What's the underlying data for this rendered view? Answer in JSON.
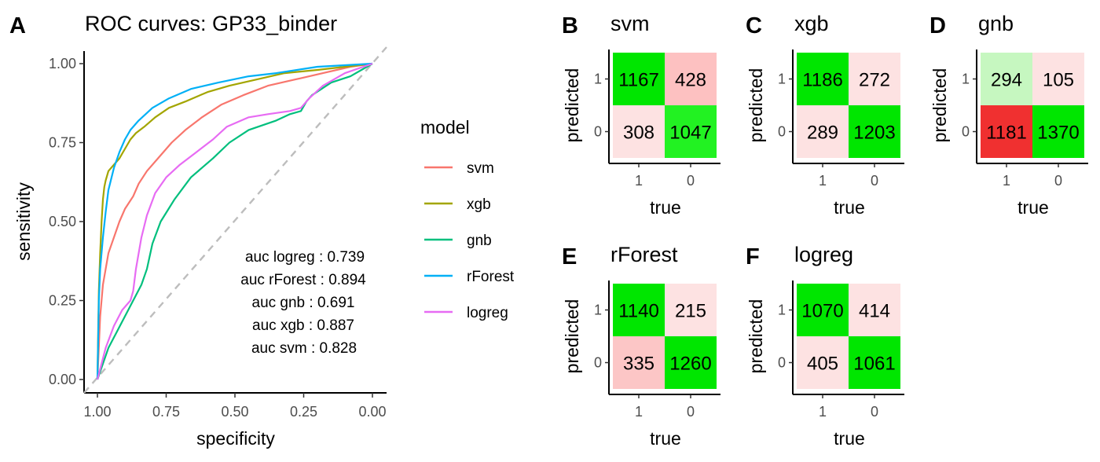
{
  "figure": {
    "panels": [
      {
        "letter": "A",
        "title": "ROC curves: GP33_binder"
      },
      {
        "letter": "B",
        "title": "svm"
      },
      {
        "letter": "C",
        "title": "xgb"
      },
      {
        "letter": "D",
        "title": "gnb"
      },
      {
        "letter": "E",
        "title": "rForest"
      },
      {
        "letter": "F",
        "title": "logreg"
      }
    ]
  },
  "chart_data": [
    {
      "type": "line",
      "title": "ROC curves: GP33_binder",
      "xlabel": "specificity",
      "ylabel": "sensitivity",
      "xlim": [
        1.0,
        0.0
      ],
      "ylim": [
        0.0,
        1.0
      ],
      "x_reversed": true,
      "xticks": [
        "1.00",
        "0.75",
        "0.50",
        "0.25",
        "0.00"
      ],
      "yticks": [
        "0.00",
        "0.25",
        "0.50",
        "0.75",
        "1.00"
      ],
      "grid": false,
      "legend": {
        "title": "model",
        "position": "right"
      },
      "reference_line": {
        "style": "dashed",
        "color": "#bdbdbd",
        "from": [
          1,
          0
        ],
        "to": [
          0,
          1
        ]
      },
      "series": [
        {
          "name": "svm",
          "color": "#F8766D",
          "points": [
            [
              1.0,
              0.0
            ],
            [
              0.99,
              0.2
            ],
            [
              0.98,
              0.3
            ],
            [
              0.96,
              0.4
            ],
            [
              0.94,
              0.45
            ],
            [
              0.92,
              0.5
            ],
            [
              0.9,
              0.54
            ],
            [
              0.87,
              0.58
            ],
            [
              0.85,
              0.62
            ],
            [
              0.82,
              0.66
            ],
            [
              0.78,
              0.7
            ],
            [
              0.73,
              0.75
            ],
            [
              0.68,
              0.79
            ],
            [
              0.62,
              0.83
            ],
            [
              0.55,
              0.87
            ],
            [
              0.47,
              0.9
            ],
            [
              0.38,
              0.93
            ],
            [
              0.28,
              0.95
            ],
            [
              0.18,
              0.97
            ],
            [
              0.08,
              0.99
            ],
            [
              0.0,
              1.0
            ]
          ]
        },
        {
          "name": "xgb",
          "color": "#A3A500",
          "points": [
            [
              1.0,
              0.0
            ],
            [
              0.995,
              0.28
            ],
            [
              0.99,
              0.4
            ],
            [
              0.985,
              0.5
            ],
            [
              0.98,
              0.57
            ],
            [
              0.975,
              0.61
            ],
            [
              0.97,
              0.63
            ],
            [
              0.96,
              0.66
            ],
            [
              0.94,
              0.68
            ],
            [
              0.92,
              0.7
            ],
            [
              0.9,
              0.73
            ],
            [
              0.88,
              0.76
            ],
            [
              0.86,
              0.78
            ],
            [
              0.83,
              0.8
            ],
            [
              0.79,
              0.83
            ],
            [
              0.74,
              0.86
            ],
            [
              0.68,
              0.88
            ],
            [
              0.6,
              0.91
            ],
            [
              0.52,
              0.93
            ],
            [
              0.42,
              0.95
            ],
            [
              0.32,
              0.97
            ],
            [
              0.2,
              0.98
            ],
            [
              0.1,
              0.99
            ],
            [
              0.0,
              1.0
            ]
          ]
        },
        {
          "name": "gnb",
          "color": "#00BF7D",
          "points": [
            [
              1.0,
              0.0
            ],
            [
              0.98,
              0.05
            ],
            [
              0.96,
              0.1
            ],
            [
              0.93,
              0.15
            ],
            [
              0.9,
              0.2
            ],
            [
              0.87,
              0.25
            ],
            [
              0.84,
              0.3
            ],
            [
              0.82,
              0.35
            ],
            [
              0.8,
              0.43
            ],
            [
              0.77,
              0.5
            ],
            [
              0.72,
              0.57
            ],
            [
              0.66,
              0.64
            ],
            [
              0.58,
              0.7
            ],
            [
              0.52,
              0.75
            ],
            [
              0.45,
              0.79
            ],
            [
              0.35,
              0.82
            ],
            [
              0.3,
              0.84
            ],
            [
              0.26,
              0.85
            ],
            [
              0.24,
              0.88
            ],
            [
              0.22,
              0.9
            ],
            [
              0.15,
              0.94
            ],
            [
              0.08,
              0.96
            ],
            [
              0.0,
              1.0
            ]
          ]
        },
        {
          "name": "rForest",
          "color": "#00B0F6",
          "points": [
            [
              1.0,
              0.0
            ],
            [
              0.995,
              0.25
            ],
            [
              0.99,
              0.35
            ],
            [
              0.98,
              0.45
            ],
            [
              0.97,
              0.53
            ],
            [
              0.96,
              0.6
            ],
            [
              0.94,
              0.67
            ],
            [
              0.92,
              0.72
            ],
            [
              0.9,
              0.76
            ],
            [
              0.88,
              0.79
            ],
            [
              0.85,
              0.82
            ],
            [
              0.8,
              0.86
            ],
            [
              0.74,
              0.89
            ],
            [
              0.66,
              0.92
            ],
            [
              0.56,
              0.94
            ],
            [
              0.45,
              0.96
            ],
            [
              0.35,
              0.97
            ],
            [
              0.2,
              0.99
            ],
            [
              0.1,
              0.995
            ],
            [
              0.0,
              1.0
            ]
          ]
        },
        {
          "name": "logreg",
          "color": "#E76BF3",
          "points": [
            [
              1.0,
              0.0
            ],
            [
              0.97,
              0.1
            ],
            [
              0.94,
              0.17
            ],
            [
              0.91,
              0.22
            ],
            [
              0.88,
              0.25
            ],
            [
              0.87,
              0.28
            ],
            [
              0.86,
              0.35
            ],
            [
              0.84,
              0.45
            ],
            [
              0.82,
              0.52
            ],
            [
              0.79,
              0.59
            ],
            [
              0.75,
              0.64
            ],
            [
              0.7,
              0.68
            ],
            [
              0.64,
              0.72
            ],
            [
              0.58,
              0.76
            ],
            [
              0.53,
              0.8
            ],
            [
              0.45,
              0.83
            ],
            [
              0.38,
              0.84
            ],
            [
              0.3,
              0.85
            ],
            [
              0.26,
              0.86
            ],
            [
              0.23,
              0.89
            ],
            [
              0.18,
              0.93
            ],
            [
              0.1,
              0.97
            ],
            [
              0.0,
              1.0
            ]
          ]
        }
      ],
      "annotations": [
        "auc logreg : 0.739",
        "auc rForest : 0.894",
        "auc gnb : 0.691",
        "auc xgb : 0.887",
        "auc svm : 0.828"
      ]
    },
    {
      "type": "heatmap",
      "title": "svm",
      "xlabel": "true",
      "ylabel": "predicted",
      "xticks": [
        "1",
        "0"
      ],
      "yticks": [
        "1",
        "0"
      ],
      "cells": [
        [
          1167,
          428
        ],
        [
          308,
          1047
        ]
      ],
      "colors": [
        [
          "#00e600",
          "#fdc1c1"
        ],
        [
          "#fde2e2",
          "#22f222"
        ]
      ]
    },
    {
      "type": "heatmap",
      "title": "xgb",
      "xlabel": "true",
      "ylabel": "predicted",
      "xticks": [
        "1",
        "0"
      ],
      "yticks": [
        "1",
        "0"
      ],
      "cells": [
        [
          1186,
          272
        ],
        [
          289,
          1203
        ]
      ],
      "colors": [
        [
          "#00e600",
          "#fde2e2"
        ],
        [
          "#fde2e2",
          "#00e600"
        ]
      ]
    },
    {
      "type": "heatmap",
      "title": "gnb",
      "xlabel": "true",
      "ylabel": "predicted",
      "xticks": [
        "1",
        "0"
      ],
      "yticks": [
        "1",
        "0"
      ],
      "cells": [
        [
          294,
          105
        ],
        [
          1181,
          1370
        ]
      ],
      "colors": [
        [
          "#c6f7c0",
          "#fde2e2"
        ],
        [
          "#f03030",
          "#00e600"
        ]
      ]
    },
    {
      "type": "heatmap",
      "title": "rForest",
      "xlabel": "true",
      "ylabel": "predicted",
      "xticks": [
        "1",
        "0"
      ],
      "yticks": [
        "1",
        "0"
      ],
      "cells": [
        [
          1140,
          215
        ],
        [
          335,
          1260
        ]
      ],
      "colors": [
        [
          "#00e600",
          "#fde2e2"
        ],
        [
          "#fcc6c6",
          "#00e600"
        ]
      ]
    },
    {
      "type": "heatmap",
      "title": "logreg",
      "xlabel": "true",
      "ylabel": "predicted",
      "xticks": [
        "1",
        "0"
      ],
      "yticks": [
        "1",
        "0"
      ],
      "cells": [
        [
          1070,
          414
        ],
        [
          405,
          1061
        ]
      ],
      "colors": [
        [
          "#00e600",
          "#fde2e2"
        ],
        [
          "#fde2e2",
          "#00e600"
        ]
      ]
    }
  ]
}
